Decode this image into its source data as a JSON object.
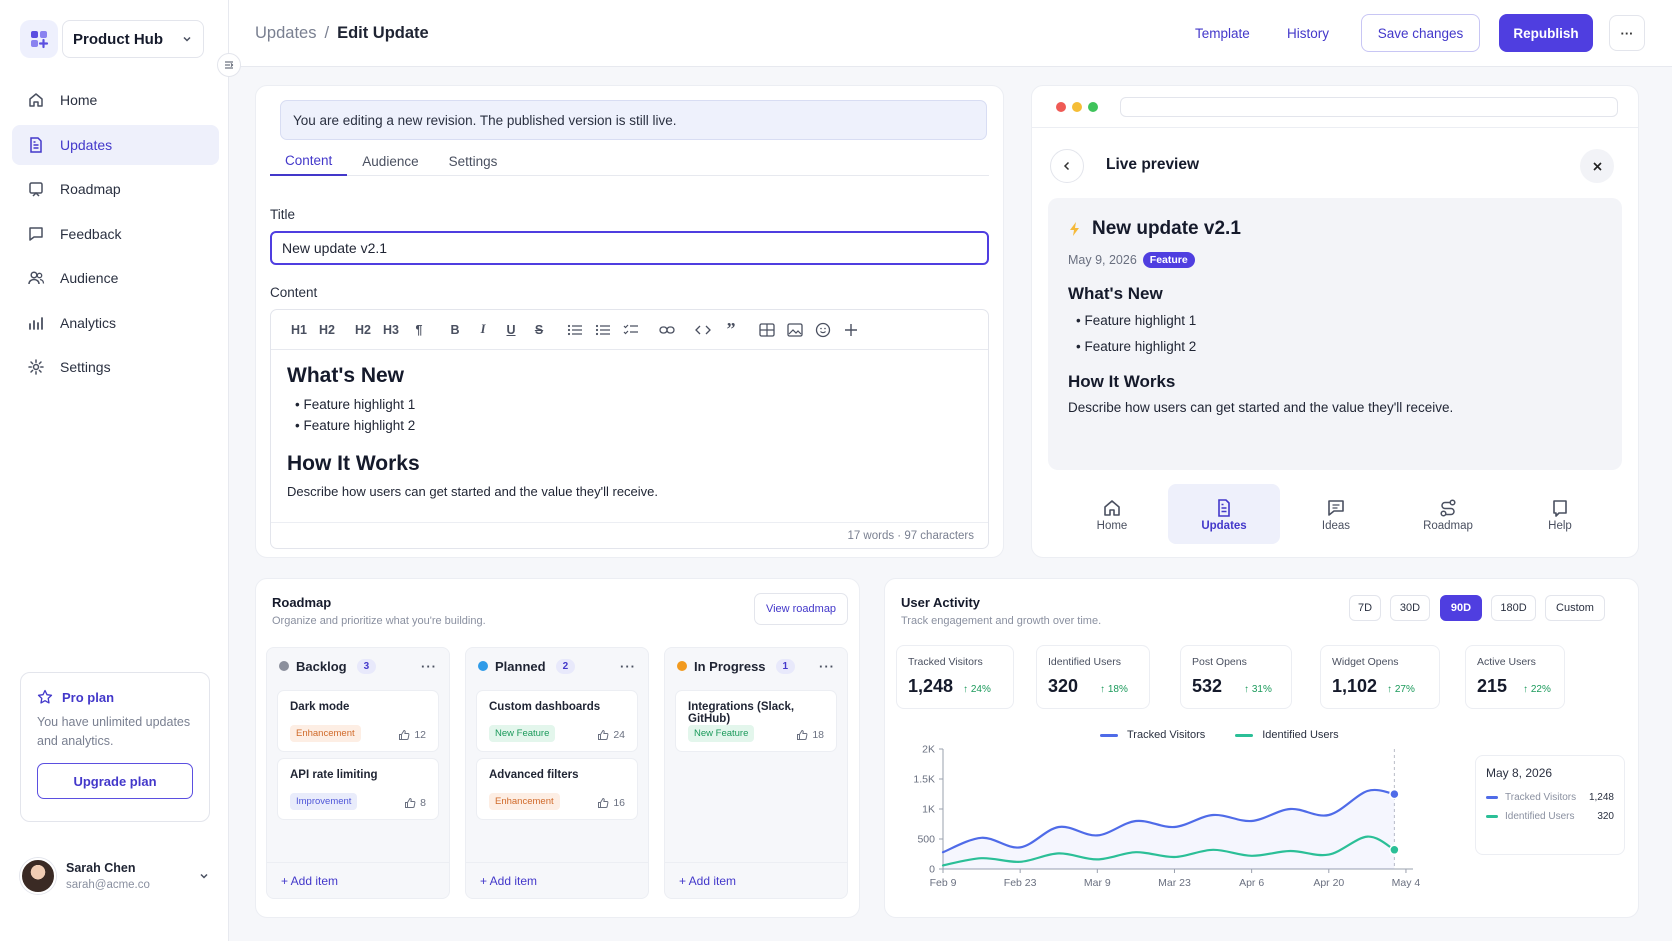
{
  "brand": {
    "name": "Product Hub"
  },
  "nav": {
    "home": "Home",
    "updates": "Updates",
    "roadmap": "Roadmap",
    "feedback": "Feedback",
    "audience": "Audience",
    "analytics": "Analytics",
    "settings": "Settings"
  },
  "pro": {
    "title": "Pro plan",
    "desc": "You have unlimited updates and analytics.",
    "cta": "Upgrade plan"
  },
  "user": {
    "name": "Sarah Chen",
    "email": "sarah@acme.co"
  },
  "header": {
    "crumb_parent": "Updates",
    "crumb_sep": "/",
    "crumb_current": "Edit Update",
    "template": "Template",
    "history": "History",
    "save": "Save changes",
    "republish": "Republish",
    "more": "···"
  },
  "editor": {
    "banner": "You are editing a new revision. The published version is still live.",
    "tabs": [
      "Content",
      "Audience",
      "Settings"
    ],
    "title_label": "Title",
    "title_value": "New update v2.1",
    "content_label": "Content",
    "toolbar": [
      "H1",
      "H2",
      "H2",
      "H3"
    ],
    "heading1": "What's New",
    "bullets": [
      "Feature highlight 1",
      "Feature highlight 2"
    ],
    "heading2": "How It Works",
    "paragraph": "Describe how users can get started and the value they'll receive.",
    "stats": "17 words · 97 characters"
  },
  "preview": {
    "title": "Live preview",
    "post_title": "New update v2.1",
    "date": "May 9, 2026",
    "badge": "Feature",
    "h_whats_new": "What's New",
    "bullets": [
      "Feature highlight 1",
      "Feature highlight 2"
    ],
    "h_how": "How It Works",
    "paragraph": "Describe how users can get started and the value they'll receive.",
    "nav": [
      "Home",
      "Updates",
      "Ideas",
      "Roadmap",
      "Help"
    ]
  },
  "roadmap": {
    "title": "Roadmap",
    "subtitle": "Organize and prioritize what you're building.",
    "view": "View roadmap",
    "add": "+ Add item",
    "more": "···",
    "columns": [
      {
        "name": "Backlog",
        "count": "3",
        "color": "#8b8f9c",
        "items": [
          {
            "title": "Dark mode",
            "tag": "Enhancement",
            "votes": "12"
          },
          {
            "title": "API rate limiting",
            "tag": "Improvement",
            "votes": "8"
          }
        ]
      },
      {
        "name": "Planned",
        "count": "2",
        "color": "#2f9be8",
        "items": [
          {
            "title": "Custom dashboards",
            "tag": "New Feature",
            "votes": "24"
          },
          {
            "title": "Advanced filters",
            "tag": "Enhancement",
            "votes": "16"
          }
        ]
      },
      {
        "name": "In Progress",
        "count": "1",
        "color": "#f29a1f",
        "items": [
          {
            "title": "Integrations (Slack, GitHub)",
            "tag": "New Feature",
            "votes": "18"
          }
        ]
      }
    ]
  },
  "activity": {
    "title": "User Activity",
    "subtitle": "Track engagement and growth over time.",
    "ranges": [
      "7D",
      "30D",
      "90D",
      "180D",
      "Custom"
    ],
    "active_range": "90D",
    "stats": [
      {
        "label": "Tracked Visitors",
        "value": "1,248",
        "change": "↑ 24%"
      },
      {
        "label": "Identified Users",
        "value": "320",
        "change": "↑ 18%"
      },
      {
        "label": "Post Opens",
        "value": "532",
        "change": "↑ 31%"
      },
      {
        "label": "Widget Opens",
        "value": "1,102",
        "change": "↑ 27%"
      },
      {
        "label": "Active Users",
        "value": "215",
        "change": "↑ 22%"
      }
    ],
    "tooltip": {
      "date": "May 8, 2026",
      "rows": [
        {
          "label": "Tracked Visitors",
          "value": "1,248"
        },
        {
          "label": "Identified Users",
          "value": "320"
        }
      ]
    }
  },
  "colors": {
    "accent": "#4f3ee0",
    "series1": "#4f6be8",
    "series2": "#2bbf97"
  },
  "chart_data": {
    "type": "line",
    "x": [
      "Feb 9",
      "Feb 23",
      "Mar 9",
      "Mar 23",
      "Apr 6",
      "Apr 20",
      "May 4"
    ],
    "y_ticks": [
      "0",
      "500",
      "1K",
      "1.5K",
      "2K"
    ],
    "ylim": [
      0,
      2000
    ],
    "series": [
      {
        "name": "Tracked Visitors",
        "color": "#4f6be8",
        "points": [
          [
            0,
            280
          ],
          [
            0.5,
            520
          ],
          [
            1,
            360
          ],
          [
            1.5,
            700
          ],
          [
            2,
            560
          ],
          [
            2.5,
            800
          ],
          [
            3,
            700
          ],
          [
            3.5,
            900
          ],
          [
            4,
            800
          ],
          [
            4.5,
            1000
          ],
          [
            5,
            900
          ],
          [
            5.5,
            1300
          ],
          [
            5.85,
            1248
          ]
        ]
      },
      {
        "name": "Identified Users",
        "color": "#2bbf97",
        "points": [
          [
            0,
            60
          ],
          [
            0.5,
            180
          ],
          [
            1,
            120
          ],
          [
            1.5,
            260
          ],
          [
            2,
            160
          ],
          [
            2.5,
            280
          ],
          [
            3,
            200
          ],
          [
            3.5,
            320
          ],
          [
            4,
            220
          ],
          [
            4.5,
            300
          ],
          [
            5,
            240
          ],
          [
            5.5,
            540
          ],
          [
            5.85,
            320
          ]
        ]
      }
    ],
    "legend": "top"
  }
}
